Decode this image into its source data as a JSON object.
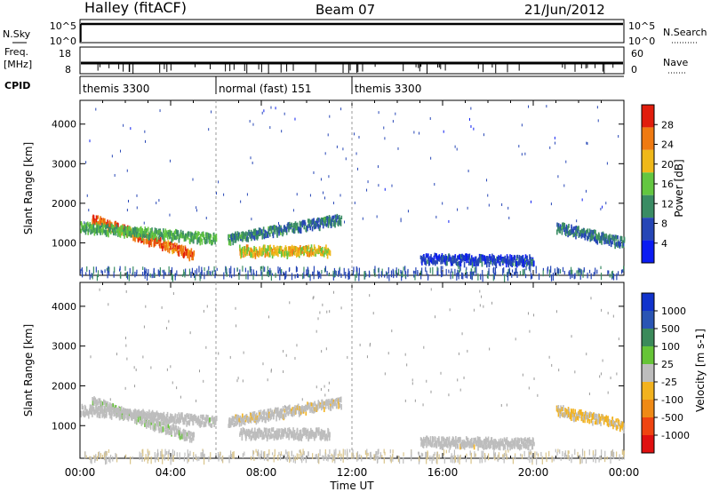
{
  "header": {
    "site": "Halley (fitACF)",
    "beam": "Beam 07",
    "date": "21/Jun/2012"
  },
  "strips": {
    "nsky_label": "N.Sky",
    "nsky_ticks": [
      "10^5",
      "10^0"
    ],
    "nsearch_label": "N.Search",
    "nsearch_ticks": [
      "10^5",
      "10^0"
    ],
    "freq_label": "Freq.",
    "freq_unit": "[MHz]",
    "freq_ticks": [
      "18",
      "8"
    ],
    "nave_label": "Nave",
    "nave_ticks": [
      "60",
      "0"
    ],
    "cpid_label": "CPID",
    "cpid_segments": [
      {
        "label": "themis 3300",
        "start_hour": 0,
        "end_hour": 6
      },
      {
        "label": "normal (fast) 151",
        "start_hour": 6,
        "end_hour": 12
      },
      {
        "label": "themis 3300",
        "start_hour": 12,
        "end_hour": 24
      }
    ]
  },
  "chart_data": [
    {
      "type": "heatmap",
      "title": "",
      "xlabel": "Time UT",
      "ylabel": "Slant Range [km]",
      "xlim": [
        0,
        24
      ],
      "ylim": [
        180,
        4600
      ],
      "x_ticks": [
        "00:00",
        "04:00",
        "08:00",
        "12:00",
        "16:00",
        "20:00",
        "00:00"
      ],
      "y_ticks": [
        1000,
        2000,
        3000,
        4000
      ],
      "colorbar": {
        "label": "Power [dB]",
        "range": [
          0,
          32
        ],
        "ticks": [
          "28",
          "24",
          "20",
          "16",
          "12",
          "8",
          "4"
        ],
        "colors": [
          "#0b1cf2",
          "#2646b6",
          "#3a8c64",
          "#63c640",
          "#efb81a",
          "#ef7a12",
          "#e11d0d"
        ]
      },
      "echo_bands": [
        {
          "name": "descending arc",
          "start_hour": 0.5,
          "end_hour": 5.0,
          "range_start_km": 1650,
          "range_end_km": 750,
          "level": 26
        },
        {
          "name": "morning band",
          "start_hour": 0.0,
          "end_hour": 6.0,
          "range_start_km": 1450,
          "range_end_km": 1150,
          "level": 14
        },
        {
          "name": "upper trace",
          "start_hour": 6.5,
          "end_hour": 11.5,
          "range_start_km": 1150,
          "range_end_km": 1650,
          "level": 10
        },
        {
          "name": "noon patch",
          "start_hour": 7.0,
          "end_hour": 11.0,
          "range_start_km": 850,
          "range_end_km": 850,
          "level": 20
        },
        {
          "name": "afternoon patches",
          "start_hour": 15.0,
          "end_hour": 20.0,
          "range_start_km": 650,
          "range_end_km": 600,
          "level": 6
        },
        {
          "name": "evening trace",
          "start_hour": 21.0,
          "end_hour": 24.0,
          "range_start_km": 1450,
          "range_end_km": 1050,
          "level": 10
        }
      ]
    },
    {
      "type": "heatmap",
      "title": "",
      "xlabel": "Time UT",
      "ylabel": "Slant Range [km]",
      "xlim": [
        0,
        24
      ],
      "ylim": [
        180,
        4600
      ],
      "x_ticks": [
        "00:00",
        "04:00",
        "08:00",
        "12:00",
        "16:00",
        "20:00",
        "00:00"
      ],
      "y_ticks": [
        1000,
        2000,
        3000,
        4000
      ],
      "colorbar": {
        "label": "Velocity [m s-1]",
        "range": [
          -1250,
          1250
        ],
        "ticks": [
          "1000",
          "500",
          "100",
          "25",
          "-25",
          "-100",
          "-500",
          "-1000"
        ],
        "colors": [
          "#e01010",
          "#ef4411",
          "#ef8a16",
          "#f2b21f",
          "#bdbdbd",
          "#66c437",
          "#3b8a5a",
          "#2a55b4",
          "#1133cc"
        ]
      },
      "echo_bands": [
        {
          "name": "descending arc",
          "start_hour": 0.5,
          "end_hour": 5.0,
          "range_start_km": 1650,
          "range_end_km": 750,
          "level": 80
        },
        {
          "name": "morning band",
          "start_hour": 0.0,
          "end_hour": 6.0,
          "range_start_km": 1450,
          "range_end_km": 1150,
          "level": 60
        },
        {
          "name": "upper trace",
          "start_hour": 6.5,
          "end_hour": 11.5,
          "range_start_km": 1150,
          "range_end_km": 1650,
          "level": -80
        },
        {
          "name": "noon patch",
          "start_hour": 7.0,
          "end_hour": 11.0,
          "range_start_km": 850,
          "range_end_km": 850,
          "level": 0
        },
        {
          "name": "afternoon patches",
          "start_hour": 15.0,
          "end_hour": 20.0,
          "range_start_km": 650,
          "range_end_km": 600,
          "level": -60
        },
        {
          "name": "evening trace",
          "start_hour": 21.0,
          "end_hour": 24.0,
          "range_start_km": 1450,
          "range_end_km": 1050,
          "level": -150
        }
      ]
    }
  ]
}
